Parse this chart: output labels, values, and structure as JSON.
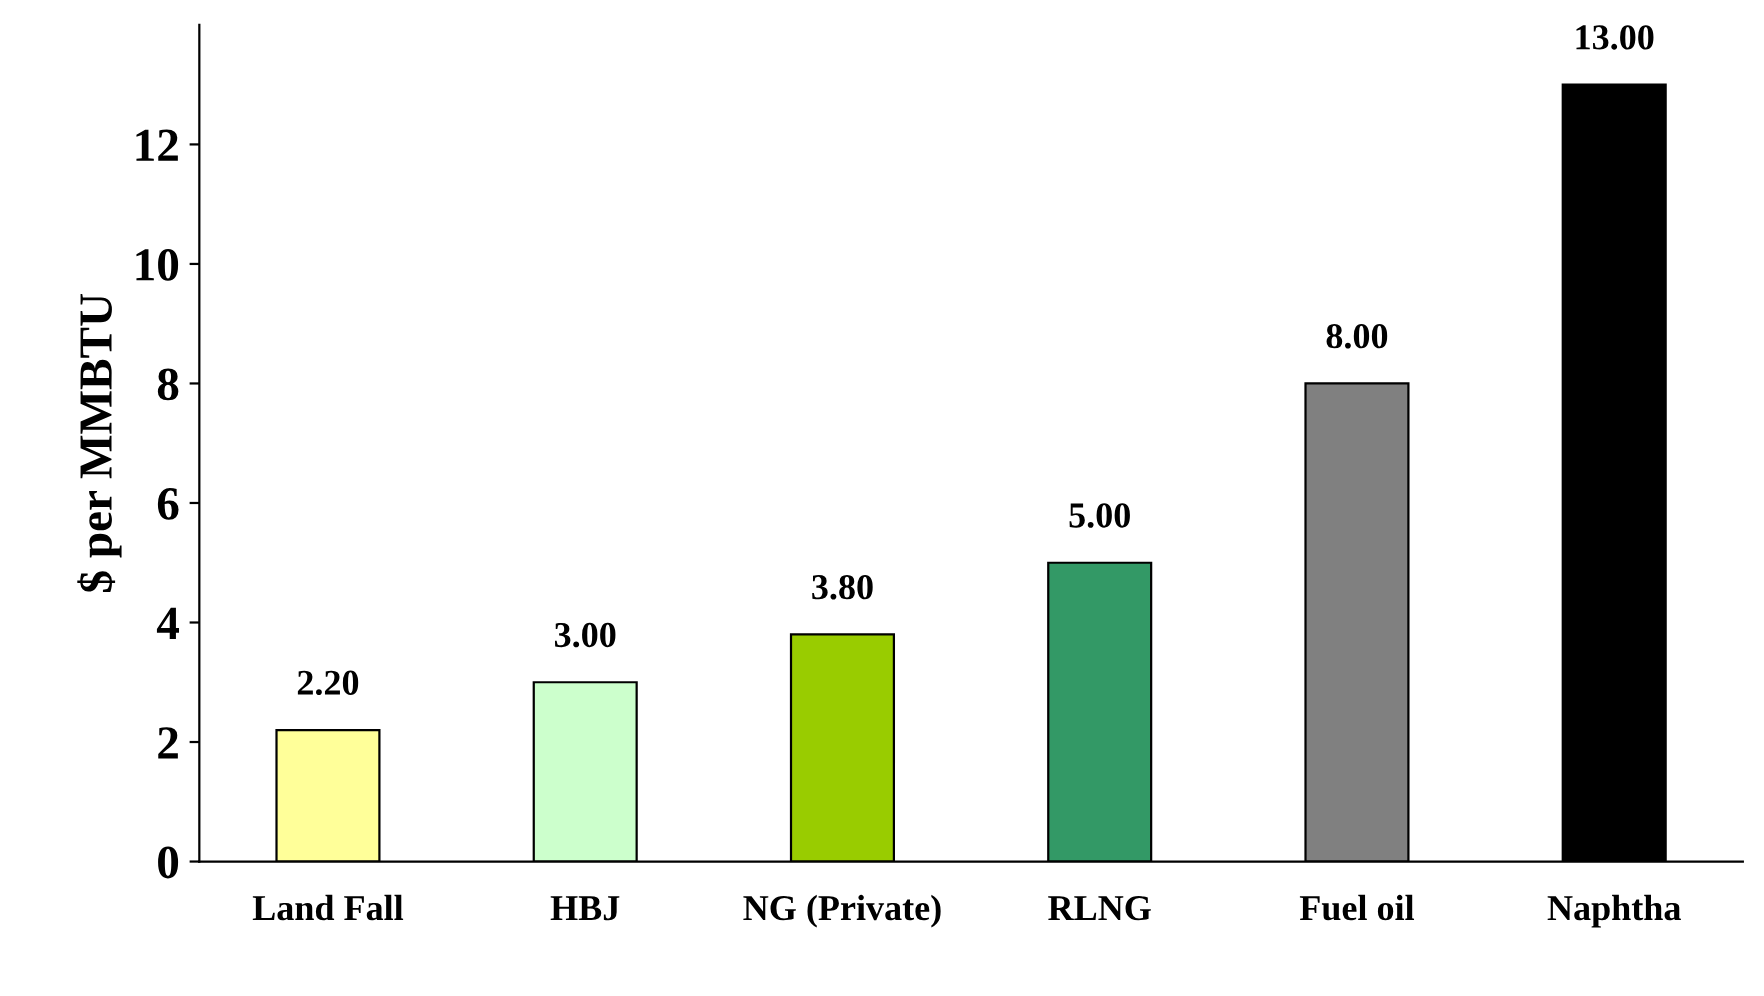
{
  "chart_data": {
    "type": "bar",
    "ylabel": "$ per MMBTU",
    "categories": [
      "Land Fall",
      "HBJ",
      "NG (Private)",
      "RLNG",
      "Fuel oil",
      "Naphtha"
    ],
    "values": [
      2.2,
      3.0,
      3.8,
      5.0,
      8.0,
      13.0
    ],
    "value_labels": [
      "2.20",
      "3.00",
      "3.80",
      "5.00",
      "8.00",
      "13.00"
    ],
    "colors": [
      "#ffff99",
      "#ccffcc",
      "#99cc00",
      "#339966",
      "#808080",
      "#000000"
    ],
    "ylim": [
      0,
      14
    ],
    "yticks": [
      0,
      2,
      4,
      6,
      8,
      10,
      12
    ],
    "grid": false,
    "legend": false
  }
}
